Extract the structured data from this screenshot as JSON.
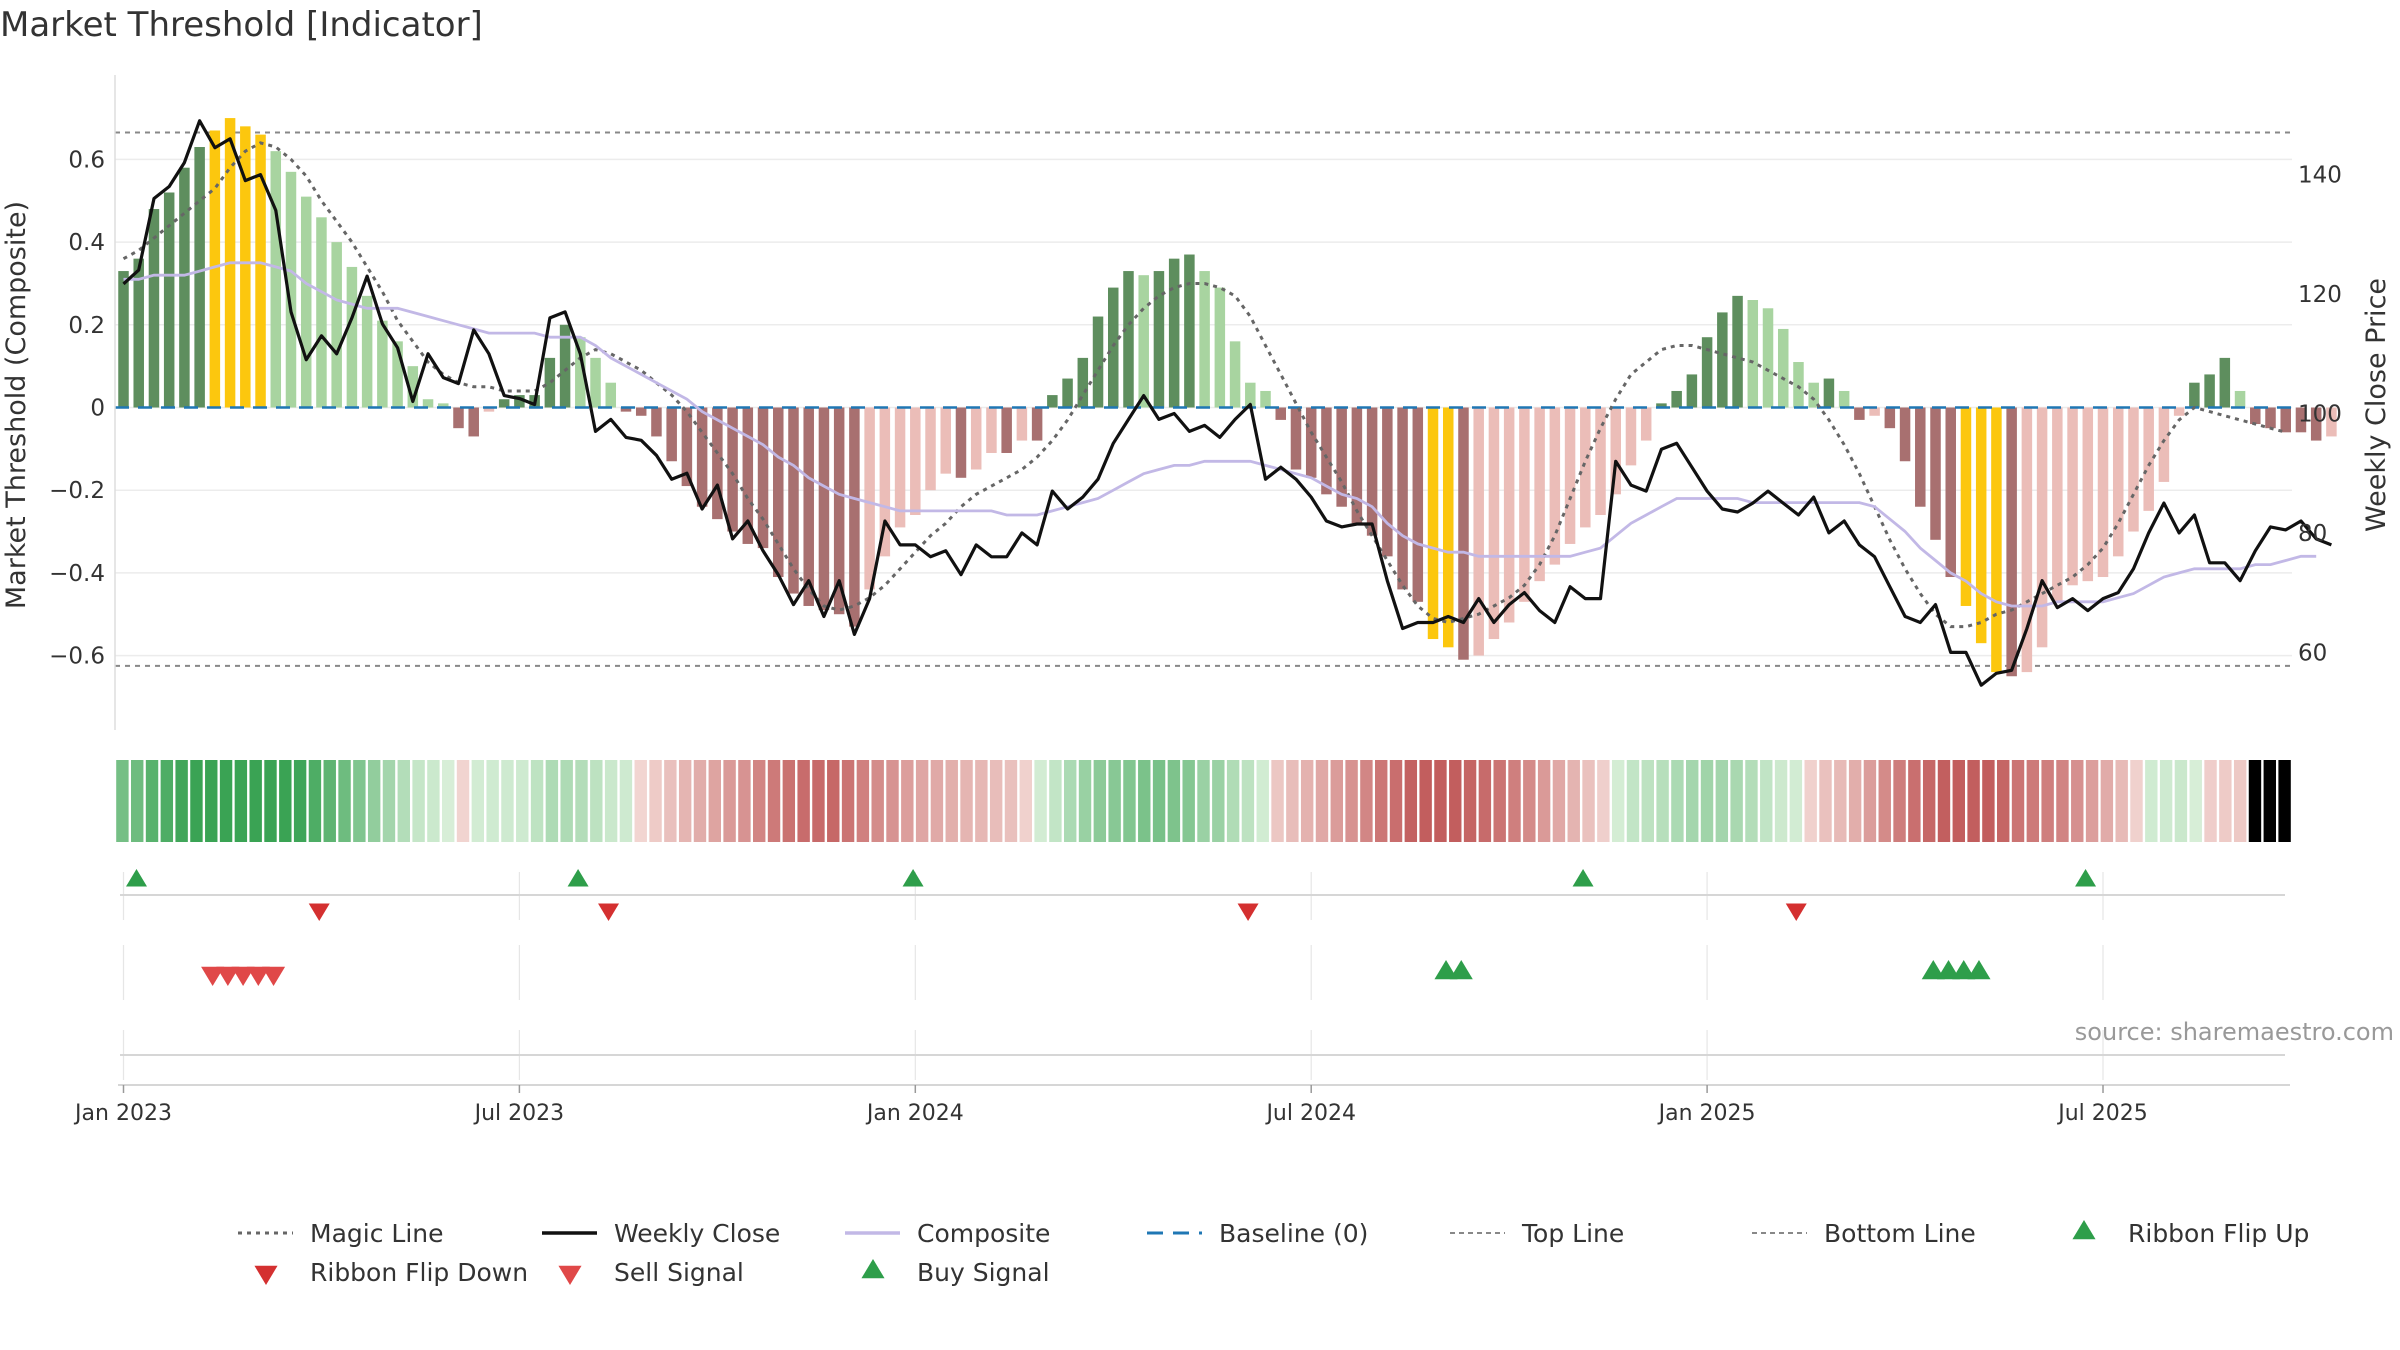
{
  "chart_data": {
    "type": "bar",
    "title": "Market Threshold [Indicator]",
    "ylabel_left": "Market Threshold (Composite)",
    "ylabel_right": "Weekly Close Price",
    "source": "source: sharemaestro.com",
    "ylim_left": [
      -0.78,
      0.78
    ],
    "ylim_right": [
      47,
      155
    ],
    "yticks_left": [
      {
        "v": 0.6,
        "label": "0.6"
      },
      {
        "v": 0.4,
        "label": "0.4"
      },
      {
        "v": 0.2,
        "label": "0.2"
      },
      {
        "v": 0,
        "label": "0"
      },
      {
        "v": -0.2,
        "label": "−0.2"
      },
      {
        "v": -0.4,
        "label": "−0.4"
      },
      {
        "v": -0.6,
        "label": "−0.6"
      }
    ],
    "yticks_right": [
      {
        "v": 140,
        "label": "140"
      },
      {
        "v": 120,
        "label": "120"
      },
      {
        "v": 100,
        "label": "100"
      },
      {
        "v": 80,
        "label": "80"
      },
      {
        "v": 60,
        "label": "60"
      }
    ],
    "xticks": [
      {
        "week": 1,
        "label": "Jan 2023"
      },
      {
        "week": 27,
        "label": "Jul 2023"
      },
      {
        "week": 53,
        "label": "Jan 2024"
      },
      {
        "week": 79,
        "label": "Jul 2024"
      },
      {
        "week": 105,
        "label": "Jan 2025"
      },
      {
        "week": 131,
        "label": "Jul 2025"
      }
    ],
    "top_line": 0.665,
    "bottom_line": -0.625,
    "histogram": [
      0.33,
      0.36,
      0.48,
      0.52,
      0.58,
      0.63,
      0.67,
      0.7,
      0.68,
      0.66,
      0.62,
      0.57,
      0.51,
      0.46,
      0.4,
      0.34,
      0.27,
      0.21,
      0.16,
      0.1,
      0.02,
      0.01,
      -0.05,
      -0.07,
      -0.01,
      0.02,
      0.03,
      0.03,
      0.12,
      0.2,
      0.17,
      0.12,
      0.06,
      -0.01,
      -0.02,
      -0.07,
      -0.13,
      -0.19,
      -0.24,
      -0.27,
      -0.3,
      -0.33,
      -0.34,
      -0.41,
      -0.45,
      -0.48,
      -0.49,
      -0.5,
      -0.53,
      -0.44,
      -0.36,
      -0.29,
      -0.26,
      -0.2,
      -0.16,
      -0.17,
      -0.15,
      -0.11,
      -0.11,
      -0.08,
      -0.08,
      0.03,
      0.07,
      0.12,
      0.22,
      0.29,
      0.33,
      0.32,
      0.33,
      0.36,
      0.37,
      0.33,
      0.29,
      0.16,
      0.06,
      0.04,
      -0.03,
      -0.15,
      -0.17,
      -0.21,
      -0.24,
      -0.28,
      -0.31,
      -0.36,
      -0.44,
      -0.47,
      -0.56,
      -0.58,
      -0.61,
      -0.6,
      -0.56,
      -0.52,
      -0.47,
      -0.42,
      -0.38,
      -0.33,
      -0.29,
      -0.26,
      -0.21,
      -0.14,
      -0.08,
      0.01,
      0.04,
      0.08,
      0.17,
      0.23,
      0.27,
      0.26,
      0.24,
      0.19,
      0.11,
      0.06,
      0.07,
      0.04,
      -0.03,
      -0.02,
      -0.05,
      -0.13,
      -0.24,
      -0.32,
      -0.41,
      -0.48,
      -0.57,
      -0.64,
      -0.65,
      -0.64,
      -0.58,
      -0.47,
      -0.43,
      -0.42,
      -0.41,
      -0.36,
      -0.3,
      -0.25,
      -0.18,
      -0.02,
      0.06,
      0.08,
      0.12,
      0.04,
      -0.04,
      -0.05,
      -0.06,
      -0.06,
      -0.08,
      -0.07
    ],
    "highlight_weeks": [
      7,
      8,
      9,
      10,
      87,
      88,
      122,
      123,
      124
    ],
    "series": [
      {
        "name": "Weekly Close",
        "values": [
          121.7,
          124.0,
          136.0,
          138.0,
          142.0,
          149.0,
          144.5,
          146.0,
          139.0,
          140.0,
          134.0,
          117.0,
          109.0,
          113.0,
          110.0,
          116.0,
          123.0,
          115.0,
          111.0,
          102.0,
          110.0,
          106.0,
          105.0,
          114.0,
          110.0,
          103.0,
          102.5,
          101.5,
          116.0,
          117.0,
          110.0,
          97.0,
          99.0,
          96.0,
          95.5,
          93.0,
          89.0,
          90.0,
          84.0,
          88.0,
          79.0,
          82.0,
          77.0,
          73.0,
          68.0,
          72.0,
          66.0,
          72.0,
          63.0,
          69.0,
          82.0,
          78.0,
          78.0,
          76.0,
          77.0,
          73.0,
          78.0,
          76.0,
          76.0,
          80.0,
          78.0,
          87.0,
          84.0,
          86.0,
          89.0,
          95.0,
          99.0,
          103.0,
          99.0,
          100.0,
          97.0,
          98.0,
          96.0,
          99.0,
          101.5,
          89.0,
          91.0,
          89.0,
          86.0,
          82.0,
          81.0,
          81.5,
          81.5,
          72.0,
          64.0,
          65.0,
          65.0,
          66.0,
          65.0,
          69.0,
          65.0,
          68.0,
          70.0,
          67.0,
          65.0,
          71.0,
          69.0,
          69.0,
          92.0,
          88.0,
          87.0,
          94.0,
          95.0,
          91.0,
          87.0,
          84.0,
          83.5,
          85.0,
          87.0,
          85.0,
          83.0,
          86.0,
          80.0,
          82.0,
          78.0,
          76.0,
          71.0,
          66.0,
          65.0,
          68.0,
          60.0,
          60.0,
          54.5,
          56.5,
          57.0,
          64.0,
          72.0,
          67.5,
          69.0,
          67.0,
          69.0,
          70.0,
          74.0,
          80.0,
          85.0,
          80.0,
          83.0,
          75.0,
          75.0,
          72.0,
          77.0,
          81.0,
          80.5,
          82.0,
          79.0,
          78.0
        ]
      },
      {
        "name": "Composite",
        "values": [
          0.31,
          0.31,
          0.32,
          0.32,
          0.32,
          0.33,
          0.34,
          0.35,
          0.35,
          0.35,
          0.34,
          0.33,
          0.3,
          0.28,
          0.26,
          0.25,
          0.24,
          0.24,
          0.24,
          0.23,
          0.22,
          0.21,
          0.2,
          0.19,
          0.18,
          0.18,
          0.18,
          0.18,
          0.17,
          0.17,
          0.17,
          0.15,
          0.12,
          0.1,
          0.08,
          0.06,
          0.04,
          0.02,
          -0.01,
          -0.03,
          -0.05,
          -0.07,
          -0.09,
          -0.12,
          -0.14,
          -0.17,
          -0.19,
          -0.21,
          -0.22,
          -0.23,
          -0.24,
          -0.25,
          -0.25,
          -0.25,
          -0.25,
          -0.25,
          -0.25,
          -0.25,
          -0.26,
          -0.26,
          -0.26,
          -0.25,
          -0.24,
          -0.23,
          -0.22,
          -0.2,
          -0.18,
          -0.16,
          -0.15,
          -0.14,
          -0.14,
          -0.13,
          -0.13,
          -0.13,
          -0.13,
          -0.14,
          -0.15,
          -0.16,
          -0.17,
          -0.19,
          -0.21,
          -0.22,
          -0.24,
          -0.28,
          -0.31,
          -0.33,
          -0.34,
          -0.35,
          -0.35,
          -0.36,
          -0.36,
          -0.36,
          -0.36,
          -0.36,
          -0.36,
          -0.36,
          -0.35,
          -0.34,
          -0.31,
          -0.28,
          -0.26,
          -0.24,
          -0.22,
          -0.22,
          -0.22,
          -0.22,
          -0.22,
          -0.23,
          -0.23,
          -0.23,
          -0.23,
          -0.23,
          -0.23,
          -0.23,
          -0.23,
          -0.24,
          -0.27,
          -0.3,
          -0.34,
          -0.37,
          -0.4,
          -0.42,
          -0.45,
          -0.47,
          -0.48,
          -0.48,
          -0.48,
          -0.47,
          -0.47,
          -0.47,
          -0.47,
          -0.46,
          -0.45,
          -0.43,
          -0.41,
          -0.4,
          -0.39,
          -0.39,
          -0.39,
          -0.39,
          -0.38,
          -0.38,
          -0.37,
          -0.36,
          -0.36
        ]
      },
      {
        "name": "Magic Line",
        "values": [
          0.36,
          0.38,
          0.41,
          0.44,
          0.47,
          0.5,
          0.53,
          0.58,
          0.62,
          0.64,
          0.63,
          0.6,
          0.56,
          0.5,
          0.45,
          0.4,
          0.34,
          0.28,
          0.21,
          0.16,
          0.11,
          0.08,
          0.06,
          0.05,
          0.05,
          0.04,
          0.04,
          0.04,
          0.06,
          0.09,
          0.12,
          0.14,
          0.13,
          0.11,
          0.09,
          0.06,
          0.03,
          -0.01,
          -0.06,
          -0.11,
          -0.16,
          -0.22,
          -0.27,
          -0.33,
          -0.39,
          -0.44,
          -0.48,
          -0.49,
          -0.48,
          -0.46,
          -0.43,
          -0.39,
          -0.35,
          -0.31,
          -0.28,
          -0.24,
          -0.21,
          -0.19,
          -0.17,
          -0.15,
          -0.12,
          -0.08,
          -0.03,
          0.03,
          0.09,
          0.15,
          0.2,
          0.24,
          0.27,
          0.29,
          0.3,
          0.3,
          0.29,
          0.27,
          0.22,
          0.15,
          0.08,
          0.01,
          -0.06,
          -0.12,
          -0.18,
          -0.25,
          -0.31,
          -0.37,
          -0.43,
          -0.48,
          -0.51,
          -0.52,
          -0.51,
          -0.5,
          -0.48,
          -0.46,
          -0.43,
          -0.38,
          -0.31,
          -0.22,
          -0.13,
          -0.05,
          0.02,
          0.08,
          0.11,
          0.14,
          0.15,
          0.15,
          0.14,
          0.13,
          0.12,
          0.11,
          0.09,
          0.07,
          0.05,
          0.02,
          -0.03,
          -0.09,
          -0.16,
          -0.24,
          -0.32,
          -0.39,
          -0.45,
          -0.5,
          -0.53,
          -0.53,
          -0.52,
          -0.5,
          -0.49,
          -0.47,
          -0.45,
          -0.43,
          -0.41,
          -0.38,
          -0.34,
          -0.28,
          -0.21,
          -0.14,
          -0.08,
          -0.03,
          0.0,
          -0.01,
          -0.02,
          -0.03,
          -0.04,
          -0.05,
          -0.06
        ]
      }
    ],
    "ribbon_weeks": 147,
    "markers": {
      "ribbon_flip_up_weeks": [
        1,
        30,
        52,
        96,
        129
      ],
      "ribbon_flip_down_weeks": [
        13,
        32,
        74,
        110
      ],
      "sell_signal_weeks": [
        6,
        7,
        8,
        9,
        10
      ],
      "buy_signal_weeks": [
        87,
        88,
        119,
        120,
        121,
        122
      ]
    },
    "legend": [
      {
        "label": "Magic Line",
        "style": "dotted-gray"
      },
      {
        "label": "Weekly Close",
        "style": "solid-black"
      },
      {
        "label": "Composite",
        "style": "solid-lavender"
      },
      {
        "label": "Baseline (0)",
        "style": "dashed-blue"
      },
      {
        "label": "Top Line",
        "style": "dashed-gray"
      },
      {
        "label": "Bottom Line",
        "style": "dashed-gray"
      },
      {
        "label": "Ribbon Flip Up",
        "style": "triangle-up-green"
      },
      {
        "label": "Ribbon Flip Down",
        "style": "triangle-down-red"
      },
      {
        "label": "Sell Signal",
        "style": "triangle-down-red"
      },
      {
        "label": "Buy Signal",
        "style": "triangle-up-green"
      }
    ],
    "colors": {
      "pos_strong": "#5e8e5e",
      "pos_light": "#a8d4a0",
      "neg_strong": "#a87070",
      "neg_light": "#ebbdb8",
      "highlight": "#fcc70e",
      "close": "#111111",
      "composite": "#c2b8e6",
      "magic": "#666666",
      "baseline": "#1f77b4",
      "bound": "#888888",
      "flip_up": "#2e9e4a",
      "flip_down": "#d43030",
      "sell": "#e04848",
      "buy": "#2e9e4a"
    }
  }
}
